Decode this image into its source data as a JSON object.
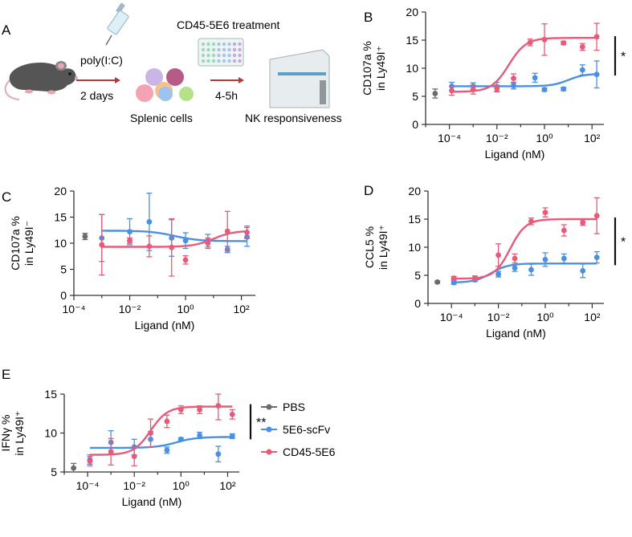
{
  "panel_labels": [
    "A",
    "B",
    "C",
    "D",
    "E"
  ],
  "schematic": {
    "poly_ic": "poly(I:C)",
    "days": "2 days",
    "treatment": "CD45-5E6 treatment",
    "hours": "4-5h",
    "splenic": "Splenic cells",
    "nk": "NK responsiveness"
  },
  "legend": [
    "PBS",
    "5E6-scFv",
    "CD45-5E6"
  ],
  "colors": {
    "PBS": "#6b6b6b",
    "5E6-scFv": "#4a90e2",
    "CD45-5E6": "#e85a78",
    "axis": "#333333"
  },
  "chart_data": [
    {
      "id": "B",
      "type": "scatter",
      "ylabel": [
        "CD107a %",
        "in Ly49I⁺"
      ],
      "xlabel": "Ligand (nM)",
      "ylim": [
        0,
        20
      ],
      "yticks": [
        0,
        5,
        10,
        15,
        20
      ],
      "xlim_log10": [
        -5,
        2.5
      ],
      "xticks": [
        "10⁻⁴",
        "10⁻²",
        "10⁰",
        "10²"
      ],
      "xtick_pos": [
        -4,
        -2,
        0,
        2
      ],
      "significance": "*",
      "series": [
        {
          "name": "PBS",
          "points": [
            [
              -4.6,
              5.5,
              0.8
            ]
          ]
        },
        {
          "name": "5E6-scFv",
          "points": [
            [
              -3.9,
              6.8,
              0.7
            ],
            [
              -3,
              6.8,
              0.6
            ],
            [
              -2,
              6.7,
              0.8
            ],
            [
              -1.3,
              6.9,
              0.6
            ],
            [
              -0.4,
              8.3,
              0.8
            ],
            [
              0,
              6.2,
              0.3
            ],
            [
              0.8,
              6.3,
              0.3
            ],
            [
              1.6,
              9.7,
              0.9
            ],
            [
              2.2,
              8.9,
              2.4
            ]
          ],
          "fit": {
            "bottom": 6.8,
            "top": 9.0,
            "logec50": 1.0,
            "hill": 1.3
          }
        },
        {
          "name": "CD45-5E6",
          "points": [
            [
              -3.9,
              6.0,
              0.8
            ],
            [
              -3,
              6.2,
              0.8
            ],
            [
              -2,
              6.4,
              0.6
            ],
            [
              -1.3,
              8.2,
              0.8
            ],
            [
              -0.6,
              14.6,
              0.6
            ],
            [
              0,
              15.1,
              2.8
            ],
            [
              0.8,
              14.5,
              0.3
            ],
            [
              1.6,
              13.8,
              0.6
            ],
            [
              2.2,
              15.6,
              2.4
            ]
          ],
          "fit": {
            "bottom": 5.8,
            "top": 15.4,
            "logec50": -1.5,
            "hill": 1.2
          }
        }
      ]
    },
    {
      "id": "C",
      "type": "scatter",
      "ylabel": [
        "CD107a %",
        "in Ly49I⁻"
      ],
      "xlabel": "Ligand (nM)",
      "ylim": [
        0,
        20
      ],
      "yticks": [
        0,
        5,
        10,
        15,
        20
      ],
      "xlim_log10": [
        -4,
        2.5
      ],
      "xticks": [
        "10⁻⁴",
        "10⁻²",
        "10⁰",
        "10²"
      ],
      "xtick_pos": [
        -4,
        -2,
        0,
        2
      ],
      "significance": "",
      "series": [
        {
          "name": "PBS",
          "points": [
            [
              -3.6,
              11.3,
              0.6
            ]
          ]
        },
        {
          "name": "5E6-scFv",
          "points": [
            [
              -3,
              11.0,
              4.5
            ],
            [
              -2,
              12.2,
              2.5
            ],
            [
              -1.3,
              14.1,
              5.5
            ],
            [
              -0.5,
              11.0,
              3.5
            ],
            [
              0,
              10.5,
              1.5
            ],
            [
              0.8,
              10.5,
              1.2
            ],
            [
              1.5,
              8.8,
              0.6
            ],
            [
              2.2,
              11.2,
              1.8
            ]
          ],
          "fit": {
            "bottom": 12.4,
            "top": 10.4,
            "logec50": -0.4,
            "hill": 1.0
          }
        },
        {
          "name": "CD45-5E6",
          "points": [
            [
              -3,
              9.7,
              5.8
            ],
            [
              -2,
              10.5,
              0.5
            ],
            [
              -1.3,
              9.4,
              2.0
            ],
            [
              -0.5,
              9.2,
              5.5
            ],
            [
              0,
              6.8,
              0.8
            ],
            [
              0.8,
              10.0,
              1.0
            ],
            [
              1.5,
              12.3,
              3.8
            ],
            [
              2.2,
              12.1,
              1.2
            ]
          ],
          "fit": {
            "bottom": 9.3,
            "top": 12.4,
            "logec50": 1.0,
            "hill": 1.2
          }
        }
      ]
    },
    {
      "id": "D",
      "type": "scatter",
      "ylabel": [
        "CCL5 %",
        "in Ly49I⁺"
      ],
      "xlabel": "Ligand (nM)",
      "ylim": [
        0,
        20
      ],
      "yticks": [
        0,
        5,
        10,
        15,
        20
      ],
      "xlim_log10": [
        -5,
        2.5
      ],
      "xticks": [
        "10⁻⁴",
        "10⁻²",
        "10⁰",
        "10²"
      ],
      "xtick_pos": [
        -4,
        -2,
        0,
        2
      ],
      "significance": "*",
      "series": [
        {
          "name": "PBS",
          "points": [
            [
              -4.6,
              3.8,
              0.2
            ]
          ]
        },
        {
          "name": "5E6-scFv",
          "points": [
            [
              -3.9,
              3.7,
              0.3
            ],
            [
              -3,
              4.2,
              0.3
            ],
            [
              -2,
              5.2,
              0.5
            ],
            [
              -1.3,
              6.3,
              0.6
            ],
            [
              -0.6,
              6.0,
              1.0
            ],
            [
              0,
              7.8,
              1.2
            ],
            [
              0.8,
              8.0,
              0.8
            ],
            [
              1.6,
              5.8,
              1.2
            ],
            [
              2.2,
              8.2,
              1.0
            ]
          ],
          "fit": {
            "bottom": 3.7,
            "top": 7.1,
            "logec50": -2.3,
            "hill": 1.2
          }
        },
        {
          "name": "CD45-5E6",
          "points": [
            [
              -3.9,
              4.5,
              0.3
            ],
            [
              -3,
              4.5,
              0.4
            ],
            [
              -2,
              8.6,
              2.0
            ],
            [
              -1.3,
              8.0,
              0.8
            ],
            [
              -0.6,
              14.6,
              0.6
            ],
            [
              0,
              16.2,
              0.8
            ],
            [
              0.8,
              13.0,
              1.0
            ],
            [
              1.6,
              14.4,
              0.5
            ],
            [
              2.2,
              15.6,
              3.2
            ]
          ],
          "fit": {
            "bottom": 4.4,
            "top": 15.0,
            "logec50": -1.5,
            "hill": 1.3
          }
        }
      ]
    },
    {
      "id": "E",
      "type": "scatter",
      "ylabel": [
        "IFNγ %",
        "in Ly49I⁺"
      ],
      "xlabel": "Ligand (nM)",
      "ylim": [
        5,
        15
      ],
      "yticks": [
        5,
        10,
        15
      ],
      "xlim_log10": [
        -5,
        2.5
      ],
      "xticks": [
        "10⁻⁴",
        "10⁻²",
        "10⁰",
        "10²"
      ],
      "xtick_pos": [
        -4,
        -2,
        0,
        2
      ],
      "significance": "**",
      "series": [
        {
          "name": "PBS",
          "points": [
            [
              -4.6,
              5.5,
              0.6
            ]
          ]
        },
        {
          "name": "5E6-scFv",
          "points": [
            [
              -3.9,
              6.6,
              0.6
            ],
            [
              -3,
              8.8,
              1.5
            ],
            [
              -2,
              8.2,
              1.0
            ],
            [
              -1.3,
              9.2,
              1.0
            ],
            [
              -0.6,
              7.8,
              0.4
            ],
            [
              0,
              9.2,
              0.2
            ],
            [
              0.8,
              9.7,
              0.4
            ],
            [
              1.6,
              7.3,
              1.0
            ],
            [
              2.2,
              9.6,
              0.3
            ]
          ],
          "fit": {
            "bottom": 8.1,
            "top": 9.5,
            "logec50": -0.2,
            "hill": 1.0
          }
        },
        {
          "name": "CD45-5E6",
          "points": [
            [
              -3.9,
              6.4,
              0.6
            ],
            [
              -3,
              7.6,
              1.7
            ],
            [
              -2,
              7.0,
              1.2
            ],
            [
              -1.3,
              10.0,
              1.8
            ],
            [
              -0.6,
              11.5,
              0.8
            ],
            [
              0,
              13.0,
              0.5
            ],
            [
              0.8,
              13.0,
              0.5
            ],
            [
              1.6,
              13.5,
              1.8
            ],
            [
              2.2,
              12.4,
              0.6
            ]
          ],
          "fit": {
            "bottom": 7.2,
            "top": 13.4,
            "logec50": -1.3,
            "hill": 1.2
          }
        }
      ]
    }
  ]
}
